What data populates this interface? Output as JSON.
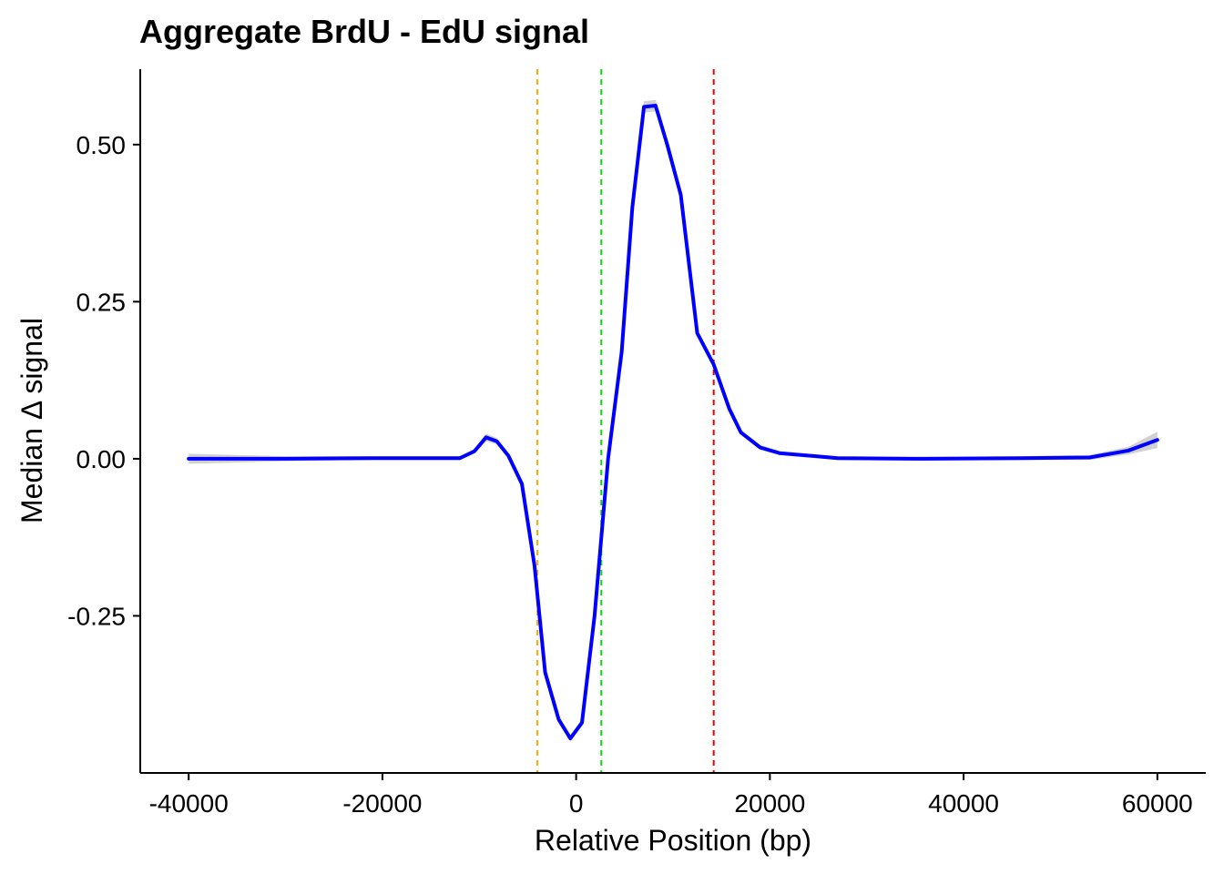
{
  "chart_data": {
    "type": "line",
    "title": "Aggregate BrdU - EdU signal",
    "xlabel": "Relative Position (bp)",
    "ylabel": "Median Δ signal",
    "xlim": [
      -45000,
      65000
    ],
    "ylim": [
      -0.5,
      0.62
    ],
    "x_ticks": [
      {
        "value": -40000,
        "label": "-40000"
      },
      {
        "value": -20000,
        "label": "-20000"
      },
      {
        "value": 0,
        "label": "0"
      },
      {
        "value": 20000,
        "label": "20000"
      },
      {
        "value": 40000,
        "label": "40000"
      },
      {
        "value": 60000,
        "label": "60000"
      }
    ],
    "y_ticks": [
      {
        "value": 0.5,
        "label": "0.50"
      },
      {
        "value": 0.25,
        "label": "0.25"
      },
      {
        "value": 0.0,
        "label": "0.00"
      },
      {
        "value": -0.25,
        "label": "-0.25"
      }
    ],
    "grid": false,
    "legend": "none",
    "reference_lines": [
      {
        "x": -4000,
        "color": "#FFA500",
        "style": "dashed"
      },
      {
        "x": 2600,
        "color": "#00DD00",
        "style": "dashed"
      },
      {
        "x": 14200,
        "color": "#EE0000",
        "style": "dashed"
      }
    ],
    "series": [
      {
        "color": "#0000FF",
        "ribbon_color": "#CCCCCC",
        "points": [
          {
            "x": -40000,
            "y": 0.0,
            "band": 0.008
          },
          {
            "x": -30000,
            "y": 0.0,
            "band": 0.004
          },
          {
            "x": -21000,
            "y": 0.001,
            "band": 0.003
          },
          {
            "x": -12000,
            "y": 0.001,
            "band": 0.003
          },
          {
            "x": -10500,
            "y": 0.012,
            "band": 0.004
          },
          {
            "x": -9300,
            "y": 0.034,
            "band": 0.006
          },
          {
            "x": -8200,
            "y": 0.028,
            "band": 0.005
          },
          {
            "x": -7000,
            "y": 0.005,
            "band": 0.004
          },
          {
            "x": -5600,
            "y": -0.04,
            "band": 0.004
          },
          {
            "x": -4300,
            "y": -0.17,
            "band": 0.004
          },
          {
            "x": -3200,
            "y": -0.34,
            "band": 0.005
          },
          {
            "x": -1800,
            "y": -0.415,
            "band": 0.005
          },
          {
            "x": -600,
            "y": -0.445,
            "band": 0.005
          },
          {
            "x": 600,
            "y": -0.42,
            "band": 0.005
          },
          {
            "x": 1900,
            "y": -0.25,
            "band": 0.005
          },
          {
            "x": 3300,
            "y": 0.0,
            "band": 0.005
          },
          {
            "x": 4700,
            "y": 0.17,
            "band": 0.006
          },
          {
            "x": 5800,
            "y": 0.4,
            "band": 0.007
          },
          {
            "x": 7000,
            "y": 0.56,
            "band": 0.009
          },
          {
            "x": 8200,
            "y": 0.562,
            "band": 0.009
          },
          {
            "x": 9400,
            "y": 0.5,
            "band": 0.008
          },
          {
            "x": 10800,
            "y": 0.42,
            "band": 0.007
          },
          {
            "x": 12500,
            "y": 0.2,
            "band": 0.006
          },
          {
            "x": 14200,
            "y": 0.15,
            "band": 0.005
          },
          {
            "x": 15800,
            "y": 0.08,
            "band": 0.005
          },
          {
            "x": 17000,
            "y": 0.042,
            "band": 0.004
          },
          {
            "x": 19000,
            "y": 0.018,
            "band": 0.004
          },
          {
            "x": 21000,
            "y": 0.009,
            "band": 0.003
          },
          {
            "x": 27000,
            "y": 0.001,
            "band": 0.003
          },
          {
            "x": 35000,
            "y": 0.0,
            "band": 0.003
          },
          {
            "x": 46000,
            "y": 0.001,
            "band": 0.003
          },
          {
            "x": 53000,
            "y": 0.002,
            "band": 0.004
          },
          {
            "x": 57000,
            "y": 0.013,
            "band": 0.006
          },
          {
            "x": 60000,
            "y": 0.03,
            "band": 0.013
          }
        ]
      }
    ]
  }
}
